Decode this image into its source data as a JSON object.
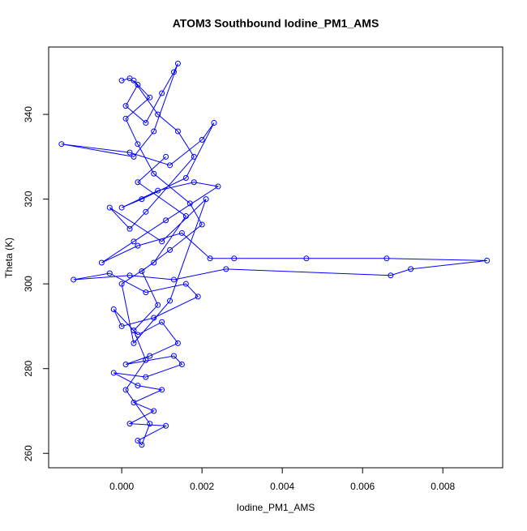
{
  "chart_data": {
    "type": "line",
    "markers": true,
    "title": "ATOM3 Southbound Iodine_PM1_AMS",
    "xlabel": "Iodine_PM1_AMS",
    "ylabel": "Theta (K)",
    "color": "#0000ff",
    "x": [
      0.0,
      0.0002,
      0.0004,
      0.0001,
      0.0006,
      0.001,
      0.0013,
      0.0014,
      0.0008,
      0.0003,
      -0.0015,
      0.0002,
      0.0012,
      0.002,
      0.0023,
      0.0016,
      0.0005,
      0.0,
      0.0009,
      0.0018,
      0.0024,
      0.0011,
      0.0003,
      -0.0005,
      0.0004,
      0.0015,
      0.0022,
      0.0028,
      0.0046,
      0.0066,
      0.0091,
      0.0072,
      0.0067,
      0.0026,
      0.0013,
      0.0002,
      -0.0012,
      -0.0003,
      0.0006,
      0.0016,
      0.0019,
      0.0008,
      0.0,
      -0.0002,
      0.0004,
      0.001,
      0.0014,
      0.0007,
      0.0001,
      0.0013,
      0.0015,
      0.0006,
      -0.0002,
      0.0004,
      0.001,
      0.0003,
      0.0008,
      0.0002,
      0.0011,
      0.0004,
      0.0005,
      0.0007,
      0.0001,
      0.0006,
      0.0003,
      0.0009,
      0.0005,
      0.0012,
      0.002,
      0.0017,
      0.0008,
      0.0004,
      0.0001,
      0.0007,
      0.0003,
      0.0009,
      0.0014,
      0.0018,
      0.0006,
      0.0002,
      -0.0003,
      0.001,
      0.0021,
      0.0012,
      0.0003,
      0.0,
      0.0008,
      0.0016,
      0.0004,
      0.0011
    ],
    "values": [
      348,
      348.5,
      347,
      342,
      338,
      345,
      350,
      352,
      336,
      330,
      333,
      331,
      328,
      334,
      338,
      325,
      320,
      318,
      322,
      324,
      323,
      315,
      310,
      305,
      309,
      312,
      306,
      306,
      306,
      306,
      305.5,
      303.5,
      302,
      303.5,
      301,
      302,
      301,
      302.5,
      298,
      300,
      297,
      292,
      290,
      294,
      288,
      291,
      286,
      283,
      281,
      283,
      281,
      278,
      279,
      276,
      275,
      272,
      270,
      267,
      266.5,
      263,
      262,
      267,
      275,
      282,
      289,
      295,
      303,
      308,
      314,
      319,
      326,
      333,
      339,
      344,
      348,
      340,
      336,
      330,
      317,
      313,
      318,
      310,
      320,
      296,
      286,
      300,
      305,
      316,
      324,
      330
    ],
    "xlim": [
      -0.00182,
      0.00949
    ],
    "ylim": [
      256.6,
      355.9
    ],
    "xticks": [
      {
        "value": 0,
        "label": "0.000"
      },
      {
        "value": 0.002,
        "label": "0.002"
      },
      {
        "value": 0.004,
        "label": "0.004"
      },
      {
        "value": 0.006,
        "label": "0.006"
      },
      {
        "value": 0.008,
        "label": "0.008"
      }
    ],
    "yticks": [
      260,
      280,
      300,
      320,
      340
    ]
  }
}
